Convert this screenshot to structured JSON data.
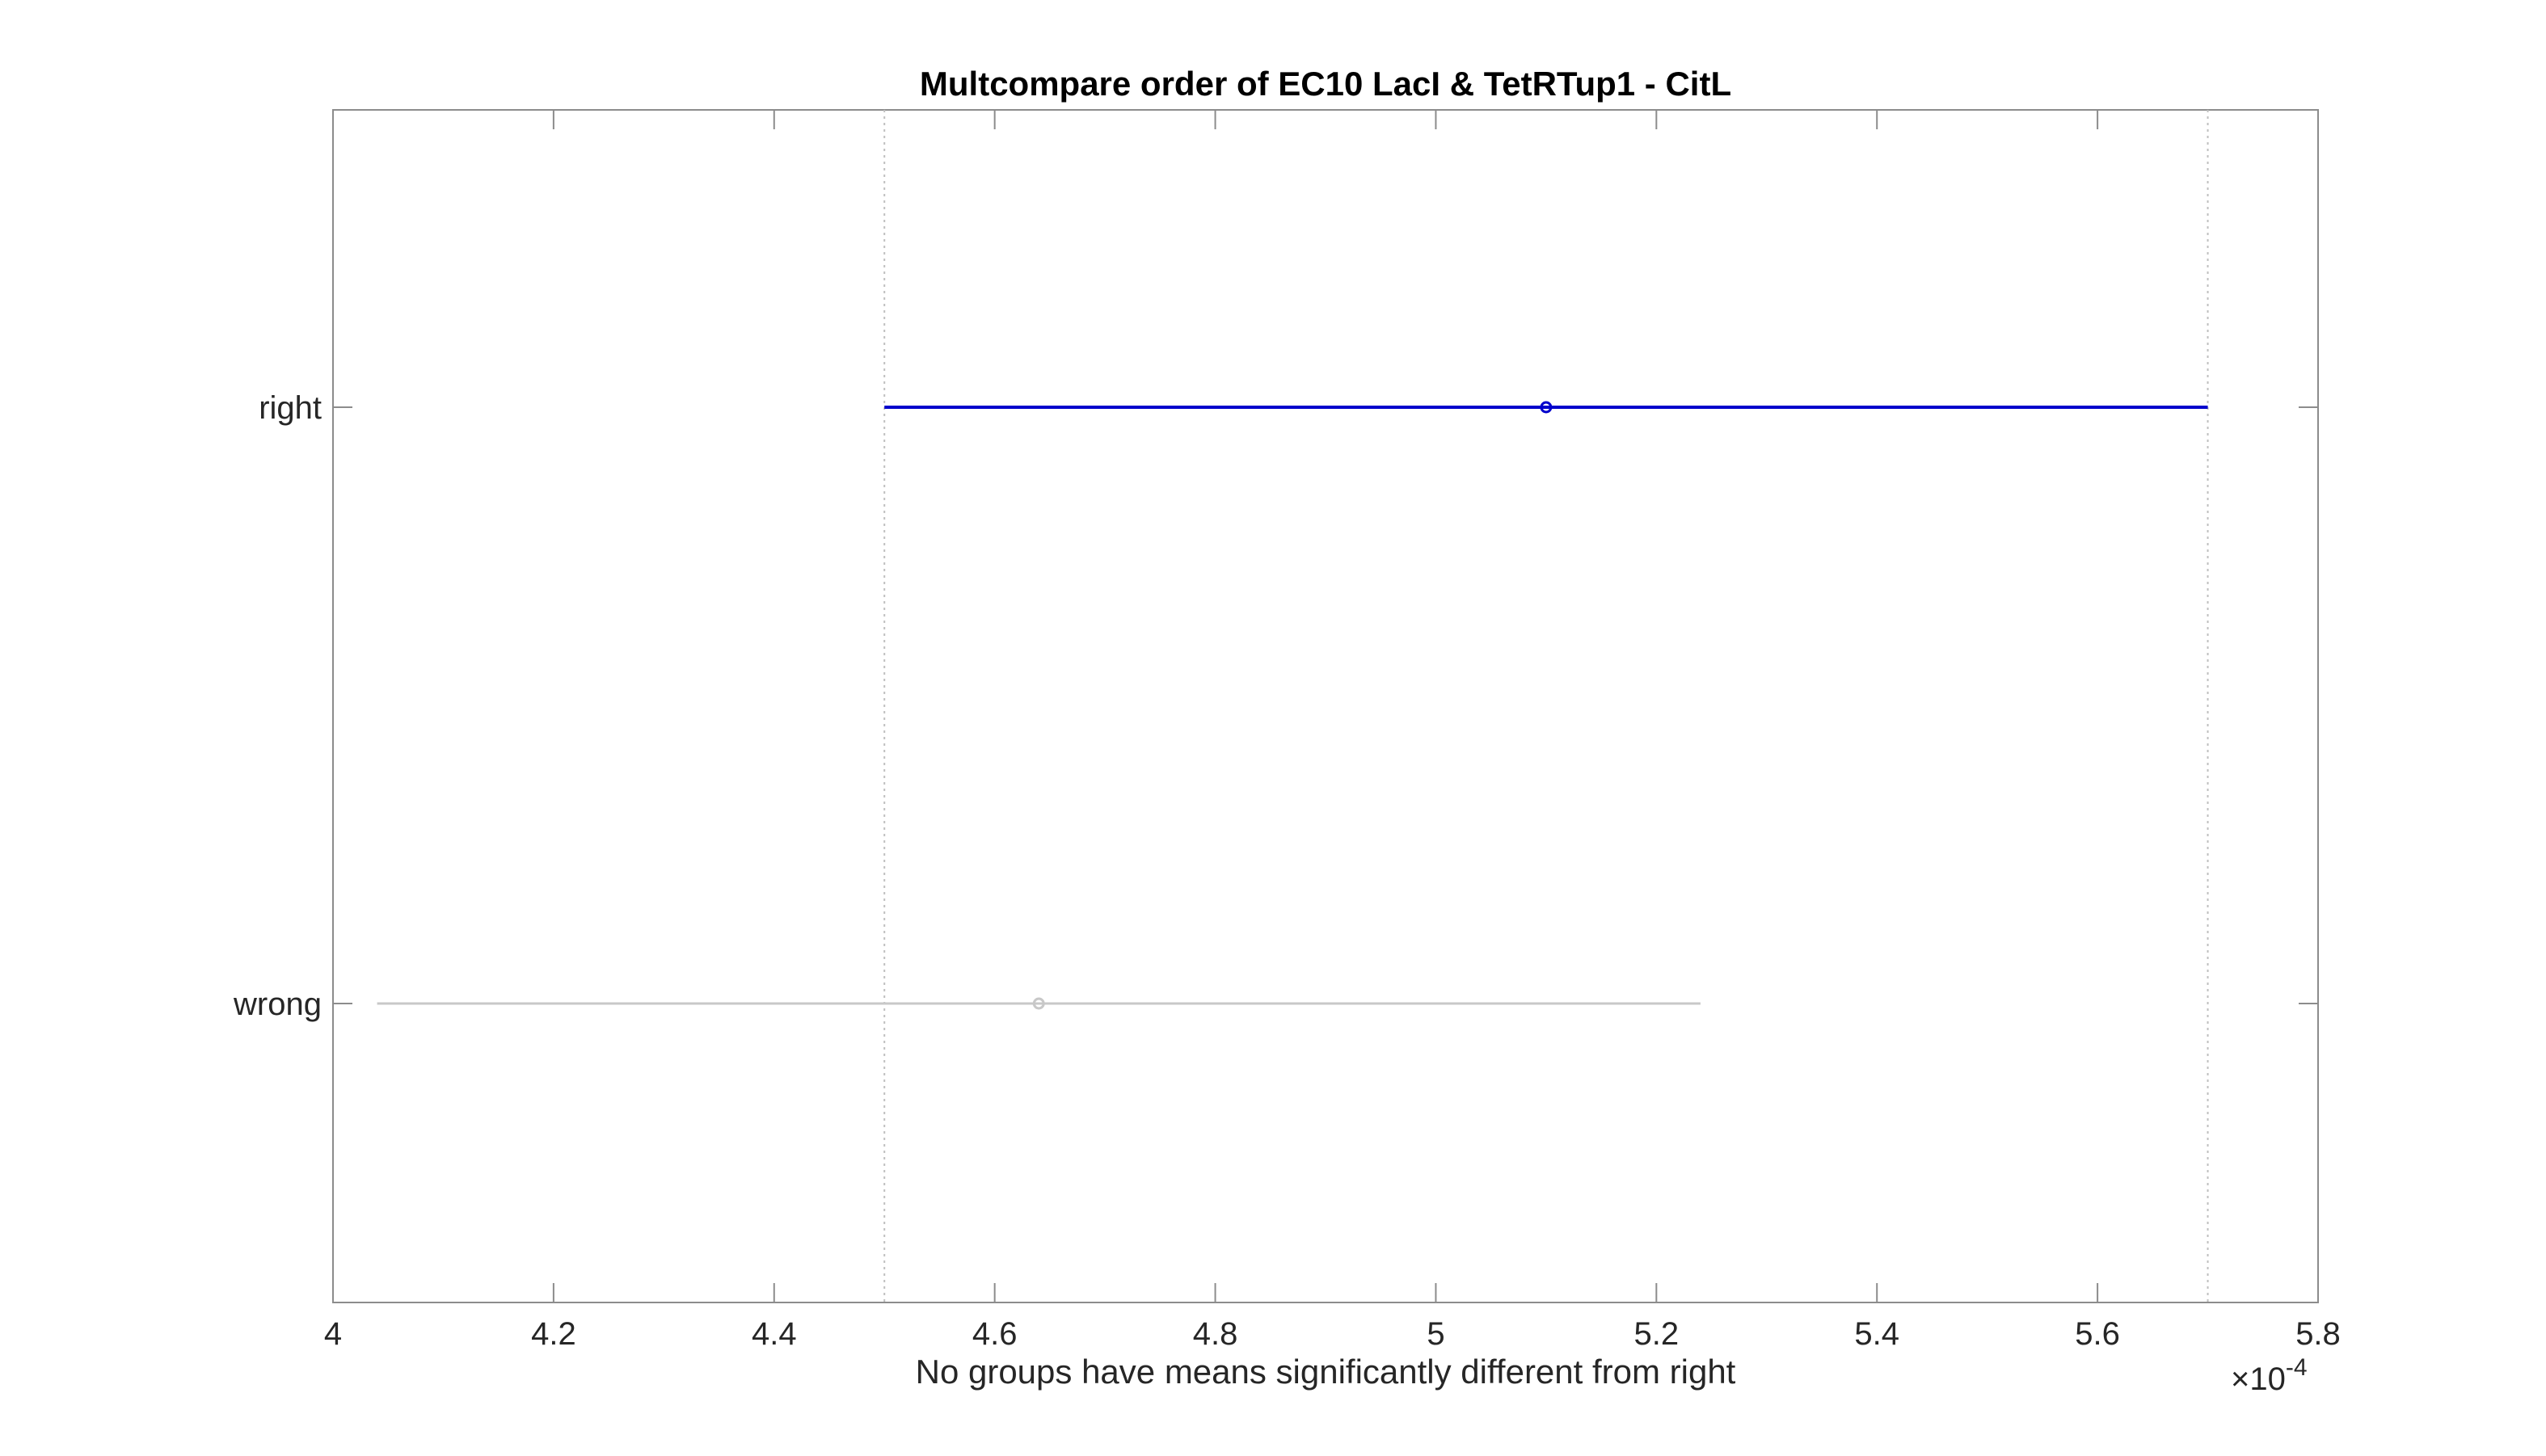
{
  "chart_data": {
    "type": "interval",
    "title": "Multcompare order of EC10 LacI & TetRTup1 - CitL",
    "xlabel": "No groups have means significantly different from right",
    "ylabel": "",
    "x_exponent_label": "×10",
    "x_exponent_power": "-4",
    "xlim": [
      4.0,
      5.8
    ],
    "x_ticks": [
      4.0,
      4.2,
      4.4,
      4.6,
      4.8,
      5.0,
      5.2,
      5.4,
      5.6,
      5.8
    ],
    "x_tick_labels": [
      "4",
      "4.2",
      "4.4",
      "4.6",
      "4.8",
      "5",
      "5.2",
      "5.4",
      "5.6",
      "5.8"
    ],
    "categories": [
      "right",
      "wrong"
    ],
    "groups": [
      {
        "name": "right",
        "mean": 5.1,
        "lower": 4.5,
        "upper": 5.7,
        "color": "#0000cc",
        "selected": true
      },
      {
        "name": "wrong",
        "mean": 4.64,
        "lower": 4.04,
        "upper": 5.24,
        "color": "#c8c8c8",
        "selected": false
      }
    ],
    "reference_lines": [
      4.5,
      5.7
    ],
    "grid": false
  }
}
